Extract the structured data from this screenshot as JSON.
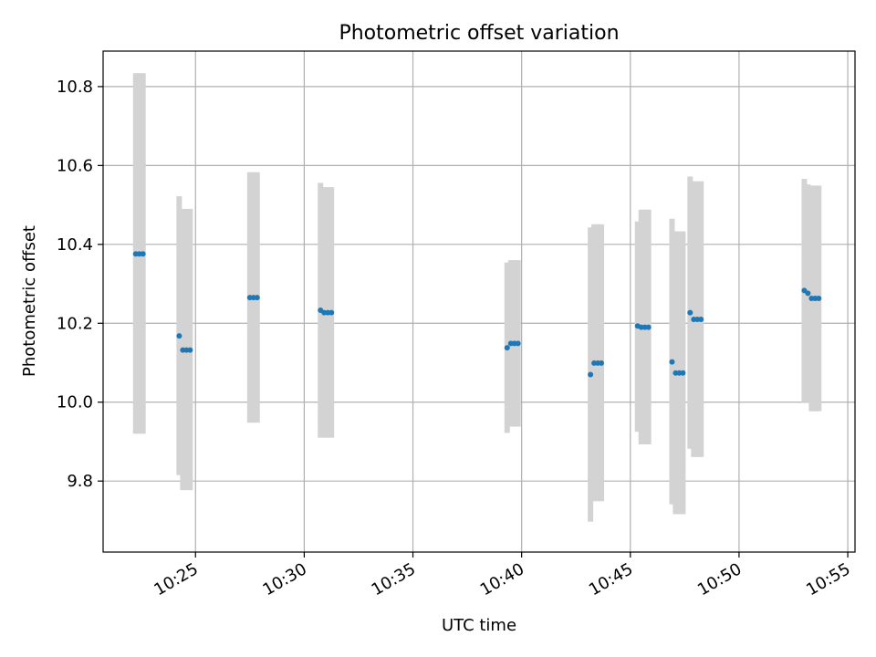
{
  "chart_data": {
    "type": "scatter",
    "title": "Photometric offset variation",
    "xlabel": "UTC time",
    "ylabel": "Photometric offset",
    "x_ticks": [
      "10:25",
      "10:30",
      "10:35",
      "10:40",
      "10:45",
      "10:50",
      "10:55"
    ],
    "y_ticks": [
      "9.8",
      "10.0",
      "10.2",
      "10.4",
      "10.6",
      "10.8"
    ],
    "xlim": [
      "10:20:45",
      "10:55:20"
    ],
    "ylim": [
      9.62,
      10.89
    ],
    "grid": true,
    "error_bar_color": "#d3d3d3",
    "point_color": "#1f77b4",
    "points": [
      {
        "x": "10:22:15",
        "y": 10.376,
        "ylow": 9.92,
        "yhigh": 10.834
      },
      {
        "x": "10:22:25",
        "y": 10.376,
        "ylow": 9.92,
        "yhigh": 10.834
      },
      {
        "x": "10:22:35",
        "y": 10.376,
        "ylow": 9.92,
        "yhigh": 10.834
      },
      {
        "x": "10:24:15",
        "y": 10.168,
        "ylow": 9.815,
        "yhigh": 10.522
      },
      {
        "x": "10:24:25",
        "y": 10.132,
        "ylow": 9.777,
        "yhigh": 10.49
      },
      {
        "x": "10:24:35",
        "y": 10.132,
        "ylow": 9.777,
        "yhigh": 10.49
      },
      {
        "x": "10:24:45",
        "y": 10.132,
        "ylow": 9.777,
        "yhigh": 10.49
      },
      {
        "x": "10:27:30",
        "y": 10.265,
        "ylow": 9.948,
        "yhigh": 10.583
      },
      {
        "x": "10:27:40",
        "y": 10.265,
        "ylow": 9.948,
        "yhigh": 10.583
      },
      {
        "x": "10:27:50",
        "y": 10.265,
        "ylow": 9.948,
        "yhigh": 10.583
      },
      {
        "x": "10:30:45",
        "y": 10.233,
        "ylow": 9.91,
        "yhigh": 10.556
      },
      {
        "x": "10:30:55",
        "y": 10.227,
        "ylow": 9.91,
        "yhigh": 10.545
      },
      {
        "x": "10:31:05",
        "y": 10.227,
        "ylow": 9.91,
        "yhigh": 10.545
      },
      {
        "x": "10:31:15",
        "y": 10.227,
        "ylow": 9.91,
        "yhigh": 10.545
      },
      {
        "x": "10:39:20",
        "y": 10.138,
        "ylow": 9.922,
        "yhigh": 10.354
      },
      {
        "x": "10:39:30",
        "y": 10.149,
        "ylow": 9.938,
        "yhigh": 10.36
      },
      {
        "x": "10:39:40",
        "y": 10.149,
        "ylow": 9.938,
        "yhigh": 10.36
      },
      {
        "x": "10:39:50",
        "y": 10.149,
        "ylow": 9.938,
        "yhigh": 10.36
      },
      {
        "x": "10:43:10",
        "y": 10.07,
        "ylow": 9.697,
        "yhigh": 10.443
      },
      {
        "x": "10:43:20",
        "y": 10.099,
        "ylow": 9.749,
        "yhigh": 10.451
      },
      {
        "x": "10:43:30",
        "y": 10.099,
        "ylow": 9.749,
        "yhigh": 10.451
      },
      {
        "x": "10:43:40",
        "y": 10.099,
        "ylow": 9.749,
        "yhigh": 10.451
      },
      {
        "x": "10:45:20",
        "y": 10.193,
        "ylow": 9.925,
        "yhigh": 10.458
      },
      {
        "x": "10:45:30",
        "y": 10.19,
        "ylow": 9.893,
        "yhigh": 10.488
      },
      {
        "x": "10:45:40",
        "y": 10.19,
        "ylow": 9.893,
        "yhigh": 10.488
      },
      {
        "x": "10:45:50",
        "y": 10.19,
        "ylow": 9.893,
        "yhigh": 10.488
      },
      {
        "x": "10:46:55",
        "y": 10.102,
        "ylow": 9.741,
        "yhigh": 10.465
      },
      {
        "x": "10:47:05",
        "y": 10.074,
        "ylow": 9.716,
        "yhigh": 10.433
      },
      {
        "x": "10:47:15",
        "y": 10.074,
        "ylow": 9.716,
        "yhigh": 10.433
      },
      {
        "x": "10:47:25",
        "y": 10.074,
        "ylow": 9.716,
        "yhigh": 10.433
      },
      {
        "x": "10:47:45",
        "y": 10.227,
        "ylow": 9.882,
        "yhigh": 10.572
      },
      {
        "x": "10:47:55",
        "y": 10.21,
        "ylow": 9.861,
        "yhigh": 10.56
      },
      {
        "x": "10:48:05",
        "y": 10.21,
        "ylow": 9.861,
        "yhigh": 10.56
      },
      {
        "x": "10:48:15",
        "y": 10.21,
        "ylow": 9.861,
        "yhigh": 10.56
      },
      {
        "x": "10:53:00",
        "y": 10.283,
        "ylow": 10.0,
        "yhigh": 10.566
      },
      {
        "x": "10:53:10",
        "y": 10.276,
        "ylow": 10.0,
        "yhigh": 10.552
      },
      {
        "x": "10:53:20",
        "y": 10.263,
        "ylow": 9.977,
        "yhigh": 10.549
      },
      {
        "x": "10:53:30",
        "y": 10.263,
        "ylow": 9.977,
        "yhigh": 10.549
      },
      {
        "x": "10:53:40",
        "y": 10.263,
        "ylow": 9.977,
        "yhigh": 10.549
      }
    ]
  }
}
